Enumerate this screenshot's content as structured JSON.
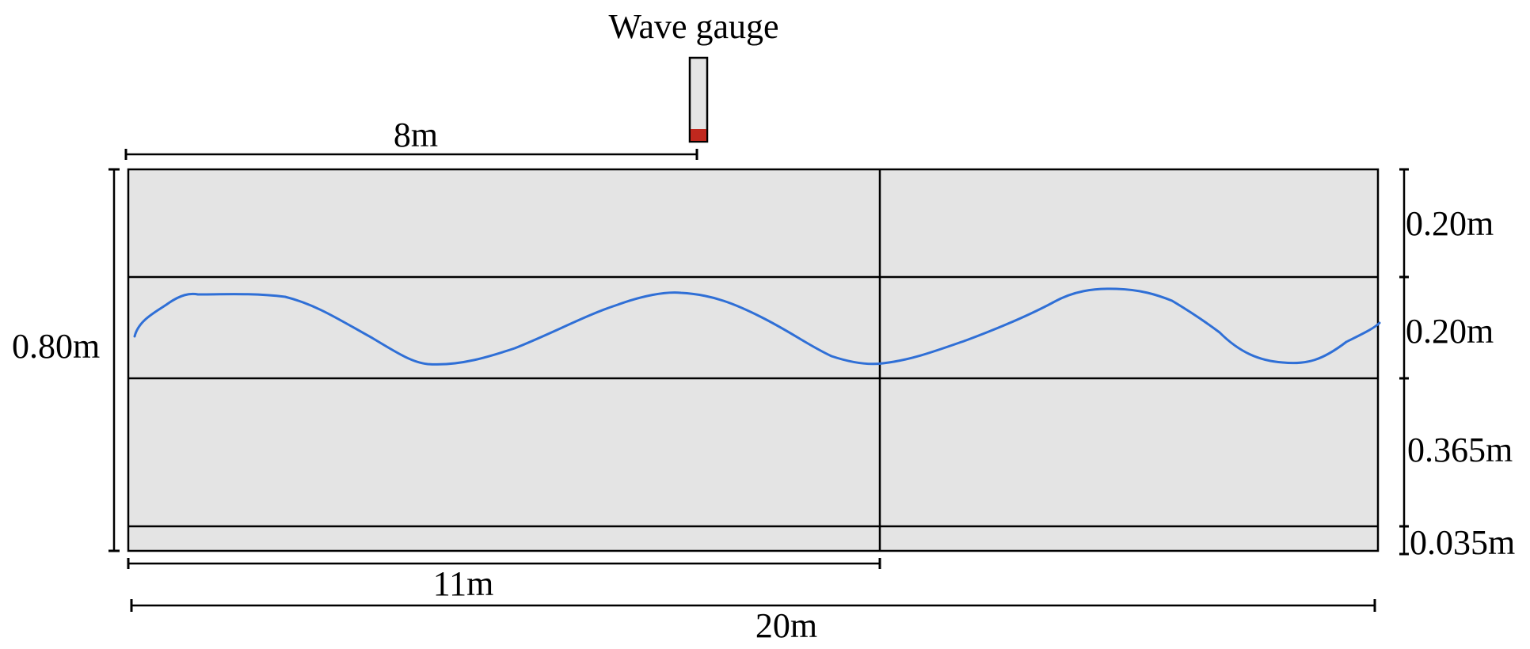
{
  "labels": {
    "gauge": "Wave gauge",
    "gauge_distance": "8m",
    "flume_height": "0.80m",
    "layer_1": "0.20m",
    "layer_2": "0.20m",
    "layer_3": "0.365m",
    "layer_4": "0.035m",
    "mid_distance": "11m",
    "total_length": "20m"
  },
  "colors": {
    "tank_fill": "#e4e4e4",
    "wave": "#2f6fd6",
    "gauge_sensor": "#c0281e",
    "gauge_body": "#e4e4e4",
    "lines": "#000000"
  }
}
